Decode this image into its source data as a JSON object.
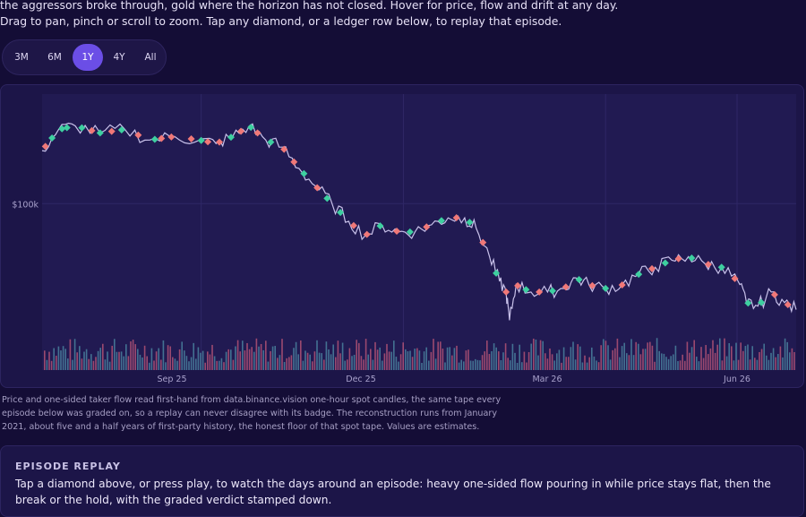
{
  "intro": {
    "line1": "the aggressors broke through, gold where the horizon has not closed. Hover for price, flow and drift at any day.",
    "line2": "Drag to pan, pinch or scroll to zoom. Tap any diamond, or a ledger row below, to replay that episode."
  },
  "range_options": [
    {
      "label": "3M",
      "active": false
    },
    {
      "label": "6M",
      "active": false
    },
    {
      "label": "1Y",
      "active": true
    },
    {
      "label": "4Y",
      "active": false
    },
    {
      "label": "All",
      "active": false
    }
  ],
  "chart_data": {
    "type": "line",
    "y_tick_labels": [
      "$100k"
    ],
    "x_tick_labels": [
      "Sep 25",
      "Dec 25",
      "Mar 26",
      "Jun 26"
    ],
    "price_series": [
      {
        "day": 0,
        "price": 115
      },
      {
        "day": 10,
        "price": 121
      },
      {
        "day": 20,
        "price": 122
      },
      {
        "day": 35,
        "price": 120
      },
      {
        "day": 50,
        "price": 121
      },
      {
        "day": 65,
        "price": 118
      },
      {
        "day": 80,
        "price": 119
      },
      {
        "day": 95,
        "price": 118
      },
      {
        "day": 105,
        "price": 117
      },
      {
        "day": 115,
        "price": 119
      },
      {
        "day": 125,
        "price": 122
      },
      {
        "day": 135,
        "price": 118
      },
      {
        "day": 145,
        "price": 116
      },
      {
        "day": 155,
        "price": 110
      },
      {
        "day": 165,
        "price": 105
      },
      {
        "day": 175,
        "price": 100
      },
      {
        "day": 185,
        "price": 95
      },
      {
        "day": 195,
        "price": 91
      },
      {
        "day": 205,
        "price": 94
      },
      {
        "day": 215,
        "price": 92
      },
      {
        "day": 225,
        "price": 92
      },
      {
        "day": 235,
        "price": 94
      },
      {
        "day": 245,
        "price": 96
      },
      {
        "day": 255,
        "price": 96
      },
      {
        "day": 262,
        "price": 93
      },
      {
        "day": 270,
        "price": 85
      },
      {
        "day": 276,
        "price": 78
      },
      {
        "day": 280,
        "price": 75
      },
      {
        "day": 282,
        "price": 67
      },
      {
        "day": 286,
        "price": 77
      },
      {
        "day": 295,
        "price": 75
      },
      {
        "day": 305,
        "price": 75
      },
      {
        "day": 315,
        "price": 76
      },
      {
        "day": 322,
        "price": 79
      },
      {
        "day": 330,
        "price": 77
      },
      {
        "day": 340,
        "price": 76
      },
      {
        "day": 350,
        "price": 77
      },
      {
        "day": 360,
        "price": 80
      },
      {
        "day": 370,
        "price": 82
      },
      {
        "day": 380,
        "price": 84
      },
      {
        "day": 390,
        "price": 85
      },
      {
        "day": 400,
        "price": 83
      },
      {
        "day": 410,
        "price": 82
      },
      {
        "day": 420,
        "price": 78
      },
      {
        "day": 425,
        "price": 72
      },
      {
        "day": 432,
        "price": 71
      },
      {
        "day": 440,
        "price": 75
      },
      {
        "day": 448,
        "price": 72
      },
      {
        "day": 455,
        "price": 70
      }
    ],
    "markers": [
      {
        "day": 2,
        "color": "#f07878"
      },
      {
        "day": 6,
        "color": "#3ecfa0"
      },
      {
        "day": 12,
        "color": "#3ecfa0"
      },
      {
        "day": 15,
        "color": "#3ecfa0"
      },
      {
        "day": 24,
        "color": "#3ecfa0"
      },
      {
        "day": 30,
        "color": "#f07878"
      },
      {
        "day": 35,
        "color": "#3ecfa0"
      },
      {
        "day": 42,
        "color": "#f07878"
      },
      {
        "day": 48,
        "color": "#3ecfa0"
      },
      {
        "day": 58,
        "color": "#f07878"
      },
      {
        "day": 68,
        "color": "#3ecfa0"
      },
      {
        "day": 72,
        "color": "#f07878"
      },
      {
        "day": 78,
        "color": "#f07878"
      },
      {
        "day": 90,
        "color": "#f07878"
      },
      {
        "day": 96,
        "color": "#3ecfa0"
      },
      {
        "day": 100,
        "color": "#f07878"
      },
      {
        "day": 107,
        "color": "#f07878"
      },
      {
        "day": 114,
        "color": "#3ecfa0"
      },
      {
        "day": 120,
        "color": "#f07878"
      },
      {
        "day": 126,
        "color": "#3ecfa0"
      },
      {
        "day": 130,
        "color": "#f07878"
      },
      {
        "day": 138,
        "color": "#3ecfa0"
      },
      {
        "day": 146,
        "color": "#f07878"
      },
      {
        "day": 152,
        "color": "#f07878"
      },
      {
        "day": 158,
        "color": "#3ecfa0"
      },
      {
        "day": 166,
        "color": "#f07878"
      },
      {
        "day": 172,
        "color": "#3ecfa0"
      },
      {
        "day": 180,
        "color": "#3ecfa0"
      },
      {
        "day": 188,
        "color": "#f07878"
      },
      {
        "day": 196,
        "color": "#f07878"
      },
      {
        "day": 204,
        "color": "#3ecfa0"
      },
      {
        "day": 214,
        "color": "#f07878"
      },
      {
        "day": 222,
        "color": "#3ecfa0"
      },
      {
        "day": 232,
        "color": "#f07878"
      },
      {
        "day": 241,
        "color": "#3ecfa0"
      },
      {
        "day": 250,
        "color": "#f07878"
      },
      {
        "day": 258,
        "color": "#3ecfa0"
      },
      {
        "day": 266,
        "color": "#f07878"
      },
      {
        "day": 274,
        "color": "#3ecfa0"
      },
      {
        "day": 280,
        "color": "#f07878"
      },
      {
        "day": 287,
        "color": "#f07878"
      },
      {
        "day": 292,
        "color": "#3ecfa0"
      },
      {
        "day": 300,
        "color": "#f07878"
      },
      {
        "day": 308,
        "color": "#3ecfa0"
      },
      {
        "day": 316,
        "color": "#f07878"
      },
      {
        "day": 324,
        "color": "#3ecfa0"
      },
      {
        "day": 332,
        "color": "#f07878"
      },
      {
        "day": 340,
        "color": "#3ecfa0"
      },
      {
        "day": 350,
        "color": "#f07878"
      },
      {
        "day": 360,
        "color": "#3ecfa0"
      },
      {
        "day": 368,
        "color": "#f07878"
      },
      {
        "day": 376,
        "color": "#3ecfa0"
      },
      {
        "day": 384,
        "color": "#f07878"
      },
      {
        "day": 392,
        "color": "#3ecfa0"
      },
      {
        "day": 402,
        "color": "#f07878"
      },
      {
        "day": 410,
        "color": "#3ecfa0"
      },
      {
        "day": 418,
        "color": "#f07878"
      },
      {
        "day": 426,
        "color": "#3ecfa0"
      },
      {
        "day": 434,
        "color": "#3ecfa0"
      },
      {
        "day": 442,
        "color": "#f07878"
      },
      {
        "day": 450,
        "color": "#f07878"
      }
    ],
    "colors": {
      "price_line": "#c8c1ea",
      "buy": "#3ecfa0",
      "sell": "#f07878",
      "grid": "#2f2766",
      "axis_text": "#a9a2cc"
    }
  },
  "caption": "Price and one-sided taker flow read first-hand from data.binance.vision one-hour spot candles, the same tape every episode below was graded on, so a replay can never disagree with its badge. The reconstruction runs from January 2021, about five and a half years of first-party history, the honest floor of that spot tape. Values are estimates.",
  "replay": {
    "title": "EPISODE REPLAY",
    "text": "Tap a diamond above, or press play, to watch the days around an episode: heavy one-sided flow pouring in while price stays flat, then the break or the hold, with the graded verdict stamped down."
  }
}
